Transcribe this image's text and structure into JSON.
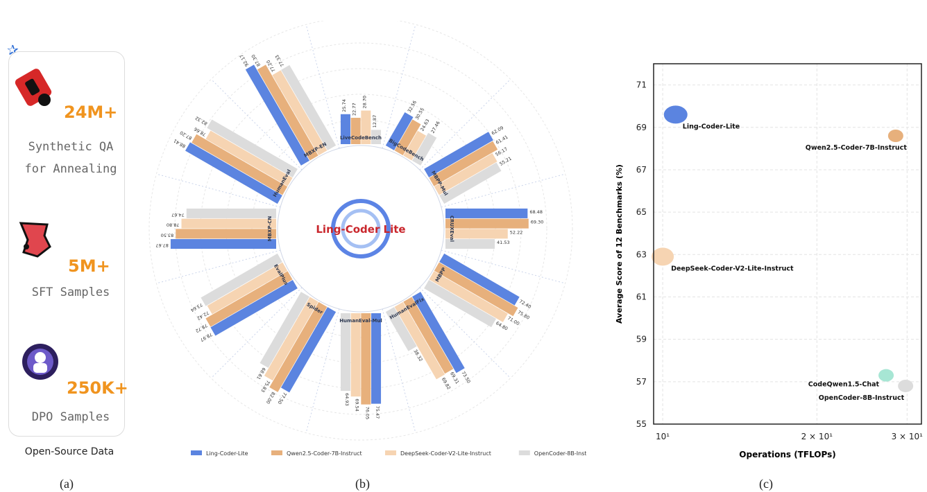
{
  "panel_a": {
    "items": [
      {
        "value": "24M+",
        "desc1": "Synthetic QA",
        "desc2": "for Annealing",
        "icon": "red-puzzle-icon"
      },
      {
        "value": "5M+",
        "desc1": "SFT Samples",
        "desc2": "",
        "icon": "red-blob-icon"
      },
      {
        "value": "250K+",
        "desc1": "DPO Samples",
        "desc2": "",
        "icon": "purple-mascot-icon"
      }
    ],
    "caption": "Open-Source Data"
  },
  "labels": {
    "a": "(a)",
    "b": "(b)",
    "c": "(c)"
  },
  "center_title": "Ling-Coder Lite",
  "colors": {
    "Ling-Coder-Lite": "#5b84e0",
    "Qwen2.5-Coder-7B-Instruct": "#e7b07c",
    "DeepSeek-Coder-V2-Lite-Instruct": "#f6d4b2",
    "OpenCoder-8B-Instruct": "#dcdcdc"
  },
  "chart_data": [
    {
      "type": "bar",
      "subtype": "circular-grouped",
      "categories": [
        "LiveCodeBench",
        "BigCodeBench",
        "MBPP-Mul",
        "CRUXEval",
        "MBPP",
        "HumanEvalFix",
        "HumanEval-Mul",
        "Spider",
        "EvalPlus",
        "MBXP-CN",
        "HumanEval",
        "MBXP-EN"
      ],
      "series": [
        {
          "name": "Ling-Coder-Lite",
          "values": [
            25.74,
            32.56,
            62.09,
            68.48,
            72.4,
            73.5,
            75.47,
            77.5,
            78.97,
            87.67,
            88.41,
            92.17
          ]
        },
        {
          "name": "Qwen2.5-Coder-7B-Instruct",
          "values": [
            22.77,
            30.55,
            61.41,
            69.3,
            75.8,
            69.31,
            76.05,
            82.0,
            78.72,
            83.5,
            87.2,
            87.3
          ]
        },
        {
          "name": "DeepSeek-Coder-V2-Lite-Instruct",
          "values": [
            28.7,
            24.63,
            56.17,
            52.22,
            71.0,
            69.82,
            69.54,
            75.83,
            72.42,
            78.8,
            78.66,
            77.2
          ]
        },
        {
          "name": "OpenCoder-8B-Instruct",
          "values": [
            12.87,
            27.46,
            55.21,
            41.53,
            64.8,
            38.32,
            64.93,
            68.61,
            73.64,
            74.67,
            82.32,
            77.33
          ]
        }
      ],
      "legend_position": "bottom",
      "center_text": "Ling-Coder Lite"
    },
    {
      "type": "scatter",
      "xlabel": "Operations (TFLOPs)",
      "ylabel": "Average Score of 12 Benchmarks (%)",
      "x_scale": "log",
      "xlim": [
        9.6,
        32
      ],
      "ylim": [
        55,
        72
      ],
      "yticks": [
        55,
        57,
        59,
        61,
        63,
        65,
        67,
        69,
        71
      ],
      "xticks": [
        {
          "value": 10,
          "label": "10¹"
        },
        {
          "value": 20,
          "label": "2 × 10¹"
        },
        {
          "value": 30,
          "label": "3 × 10¹"
        }
      ],
      "grid": true,
      "points": [
        {
          "name": "Ling-Coder-Lite",
          "x": 10.6,
          "y": 69.6,
          "color": "#5b84e0"
        },
        {
          "name": "Qwen2.5-Coder-7B-Instruct",
          "x": 28.5,
          "y": 68.6,
          "color": "#e7b07c"
        },
        {
          "name": "DeepSeek-Coder-V2-Lite-Instruct",
          "x": 10.0,
          "y": 62.9,
          "color": "#f6d4b2"
        },
        {
          "name": "CodeQwen1.5-Chat",
          "x": 27.3,
          "y": 57.3,
          "color": "#a7e6d4"
        },
        {
          "name": "OpenCoder-8B-Instruct",
          "x": 29.8,
          "y": 56.8,
          "color": "#dcdcdc"
        }
      ]
    }
  ]
}
